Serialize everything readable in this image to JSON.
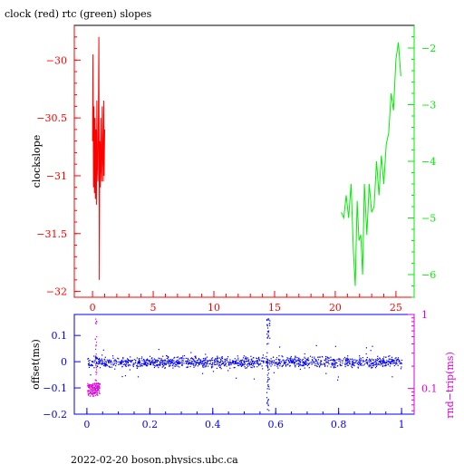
{
  "title": "clock (red) rtc (green) slopes",
  "footer": "2022-02-20  boson.physics.ubc.ca",
  "colors": {
    "clock": "#ff0000",
    "rtc": "#00ee00",
    "offset": "#0000ff",
    "rtt": "#dd00dd",
    "axis": "#000000"
  },
  "chart_data": [
    {
      "type": "line",
      "ylabel": "clockslope",
      "x_ticks": [
        "0",
        "5",
        "10",
        "15",
        "20",
        "25"
      ],
      "y_left_ticks": [
        "−30",
        "−30.5",
        "−31",
        "−31.5",
        "−32"
      ],
      "y_right_ticks": [
        "−2",
        "−3",
        "−4",
        "−5",
        "−6"
      ],
      "xlim": [
        -1.5,
        26.5
      ],
      "ylim_left": [
        -32.05,
        -29.7
      ],
      "ylim_right": [
        -6.4,
        -1.6
      ],
      "series": [
        {
          "axis": "left",
          "x": [
            0.0,
            0.04,
            0.08,
            0.12,
            0.16,
            0.2,
            0.24,
            0.28,
            0.32,
            0.36,
            0.4,
            0.44,
            0.48,
            0.52,
            0.56,
            0.6,
            0.64,
            0.68,
            0.72,
            0.76,
            0.8,
            0.84,
            0.88,
            0.92,
            0.96,
            1.0
          ],
          "y": [
            -30.7,
            -29.95,
            -31.1,
            -30.4,
            -31.15,
            -30.5,
            -31.2,
            -30.6,
            -31.25,
            -30.35,
            -30.9,
            -31.05,
            -30.55,
            -29.8,
            -31.9,
            -30.7,
            -31.1,
            -30.5,
            -30.95,
            -31.05,
            -30.4,
            -30.8,
            -31.05,
            -30.35,
            -31.0,
            -30.6
          ]
        },
        {
          "axis": "right",
          "x": [
            20.5,
            20.7,
            20.9,
            21.1,
            21.3,
            21.5,
            21.65,
            21.8,
            21.95,
            22.1,
            22.25,
            22.4,
            22.6,
            22.8,
            23.0,
            23.2,
            23.4,
            23.6,
            23.8,
            24.0,
            24.2,
            24.4,
            24.6,
            24.8,
            25.0,
            25.2,
            25.4
          ],
          "y": [
            -4.9,
            -5.0,
            -4.6,
            -5.0,
            -4.4,
            -5.6,
            -6.2,
            -4.7,
            -5.4,
            -5.3,
            -6.0,
            -4.4,
            -5.3,
            -4.4,
            -4.9,
            -4.8,
            -4.0,
            -4.6,
            -3.9,
            -4.4,
            -3.7,
            -3.5,
            -2.8,
            -3.1,
            -2.2,
            -1.9,
            -2.5
          ]
        }
      ]
    },
    {
      "type": "scatter",
      "ylabel": "offset(ms)",
      "y2label": "rnd−trip(ms)",
      "x_ticks": [
        "0",
        "0.2",
        "0.4",
        "0.6",
        "0.8",
        "1"
      ],
      "y_ticks": [
        "0.1",
        "0",
        "−0.1",
        "−0.2"
      ],
      "y_ticks_values": [
        0.1,
        0,
        -0.1,
        -0.2
      ],
      "y2_ticks": [
        "1",
        "0.1"
      ],
      "y2_scale": "log",
      "xlim": [
        -0.04,
        1.04
      ],
      "ylim": [
        -0.2,
        0.18
      ],
      "y2lim": [
        0.045,
        1.0
      ],
      "offset_band_center": 0.0,
      "offset_band_halfwidth": 0.03,
      "spike_x": 0.575,
      "spike_range": [
        -0.19,
        0.17
      ],
      "rtt_cluster": {
        "x_range": [
          0.0,
          0.04
        ],
        "range": [
          0.08,
          0.12
        ],
        "spike_max": 0.9
      }
    }
  ]
}
